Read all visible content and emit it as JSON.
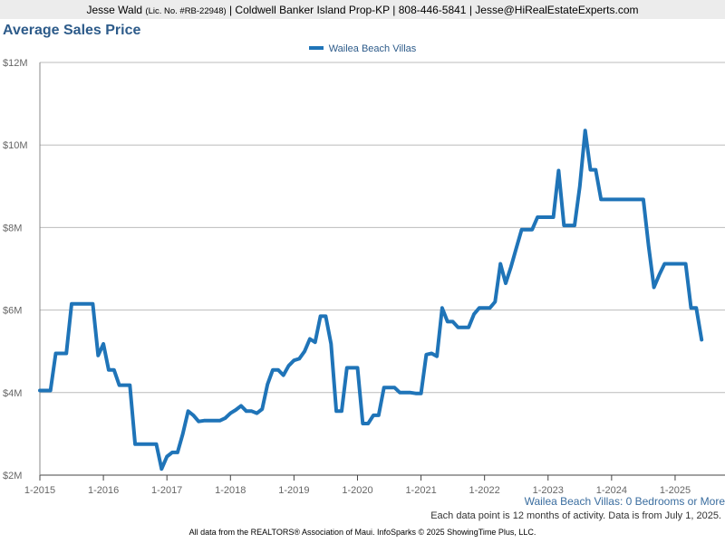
{
  "header": {
    "agent_name": "Jesse Wald",
    "license": "(Lic. No. #RB-22948)",
    "details": "| Coldwell Banker Island Prop-KP | 808-446-5841 | Jesse@HiRealEstateExperts.com"
  },
  "filter_label": "Wailea Beach Villas: 0 Bedrooms or More",
  "note": "Each data point is 12 months of activity. Data is from July 1, 2025.",
  "footer": "All data from the REALTORS® Association of Maui. InfoSparks © 2025 ShowingTime Plus, LLC.",
  "colors": {
    "series": "#1f74b8",
    "title": "#2d5b8a",
    "grid": "#bbbbbb"
  },
  "chart_data": {
    "type": "line",
    "title": "Average Sales Price",
    "xlabel": "",
    "ylabel": "",
    "x_tick_labels": [
      "1-2015",
      "1-2016",
      "1-2017",
      "1-2018",
      "1-2019",
      "1-2020",
      "1-2021",
      "1-2022",
      "1-2023",
      "1-2024",
      "1-2025"
    ],
    "y_ticks": [
      2,
      4,
      6,
      8,
      10,
      12
    ],
    "y_tick_labels": [
      "$2M",
      "$4M",
      "$6M",
      "$8M",
      "$10M",
      "$12M"
    ],
    "ylim": [
      2,
      12
    ],
    "y_unit": "millions of dollars",
    "grid": true,
    "legend_position": "top-center",
    "series": [
      {
        "name": "Wailea Beach Villas",
        "x": [
          "2015-01",
          "2015-02",
          "2015-03",
          "2015-04",
          "2015-05",
          "2015-06",
          "2015-07",
          "2015-08",
          "2015-09",
          "2015-10",
          "2015-11",
          "2015-12",
          "2016-01",
          "2016-02",
          "2016-03",
          "2016-04",
          "2016-05",
          "2016-06",
          "2016-07",
          "2016-08",
          "2016-09",
          "2016-10",
          "2016-11",
          "2016-12",
          "2017-01",
          "2017-02",
          "2017-03",
          "2017-04",
          "2017-05",
          "2017-06",
          "2017-07",
          "2017-08",
          "2017-09",
          "2017-10",
          "2017-11",
          "2017-12",
          "2018-01",
          "2018-02",
          "2018-03",
          "2018-04",
          "2018-05",
          "2018-06",
          "2018-07",
          "2018-08",
          "2018-09",
          "2018-10",
          "2018-11",
          "2018-12",
          "2019-01",
          "2019-02",
          "2019-03",
          "2019-04",
          "2019-05",
          "2019-06",
          "2019-07",
          "2019-08",
          "2019-09",
          "2019-10",
          "2019-11",
          "2019-12",
          "2020-01",
          "2020-02",
          "2020-03",
          "2020-04",
          "2020-05",
          "2020-06",
          "2020-07",
          "2020-08",
          "2020-09",
          "2020-10",
          "2020-11",
          "2020-12",
          "2021-01",
          "2021-02",
          "2021-03",
          "2021-04",
          "2021-05",
          "2021-06",
          "2021-07",
          "2021-08",
          "2021-09",
          "2021-10",
          "2021-11",
          "2021-12",
          "2022-01",
          "2022-02",
          "2022-03",
          "2022-04",
          "2022-05",
          "2022-06",
          "2022-07",
          "2022-08",
          "2022-09",
          "2022-10",
          "2022-11",
          "2022-12",
          "2023-01",
          "2023-02",
          "2023-03",
          "2023-04",
          "2023-05",
          "2023-06",
          "2023-07",
          "2023-08",
          "2023-09",
          "2023-10",
          "2023-11",
          "2023-12",
          "2024-01",
          "2024-02",
          "2024-03",
          "2024-04",
          "2024-05",
          "2024-06",
          "2024-07",
          "2024-08",
          "2024-09",
          "2024-10",
          "2024-11",
          "2024-12",
          "2025-01",
          "2025-02",
          "2025-03",
          "2025-04",
          "2025-05",
          "2025-06"
        ],
        "values": [
          4.05,
          4.05,
          4.05,
          4.95,
          4.95,
          4.95,
          6.15,
          6.15,
          6.15,
          6.15,
          6.15,
          4.9,
          5.18,
          4.55,
          4.55,
          4.18,
          4.18,
          4.18,
          2.75,
          2.75,
          2.75,
          2.75,
          2.75,
          2.15,
          2.45,
          2.55,
          2.55,
          3.0,
          3.55,
          3.45,
          3.3,
          3.32,
          3.32,
          3.32,
          3.32,
          3.38,
          3.5,
          3.58,
          3.68,
          3.55,
          3.55,
          3.5,
          3.6,
          4.2,
          4.55,
          4.55,
          4.42,
          4.65,
          4.78,
          4.82,
          5.0,
          5.3,
          5.22,
          5.85,
          5.85,
          5.18,
          3.55,
          3.55,
          4.6,
          4.6,
          4.6,
          3.25,
          3.25,
          3.45,
          3.45,
          4.12,
          4.12,
          4.12,
          4.0,
          4.0,
          4.0,
          3.98,
          3.98,
          4.92,
          4.95,
          4.88,
          6.05,
          5.72,
          5.72,
          5.58,
          5.58,
          5.58,
          5.9,
          6.05,
          6.05,
          6.05,
          6.2,
          7.12,
          6.65,
          7.05,
          7.5,
          7.95,
          7.95,
          7.95,
          8.25,
          8.25,
          8.25,
          8.25,
          9.38,
          8.05,
          8.05,
          8.05,
          9.0,
          10.35,
          9.4,
          9.4,
          8.68,
          8.68,
          8.68,
          8.68,
          8.68,
          8.68,
          8.68,
          8.68,
          8.68,
          7.55,
          6.55,
          6.85,
          7.12,
          7.12,
          7.12,
          7.12,
          7.12,
          6.05,
          6.05,
          5.28
        ]
      }
    ]
  }
}
